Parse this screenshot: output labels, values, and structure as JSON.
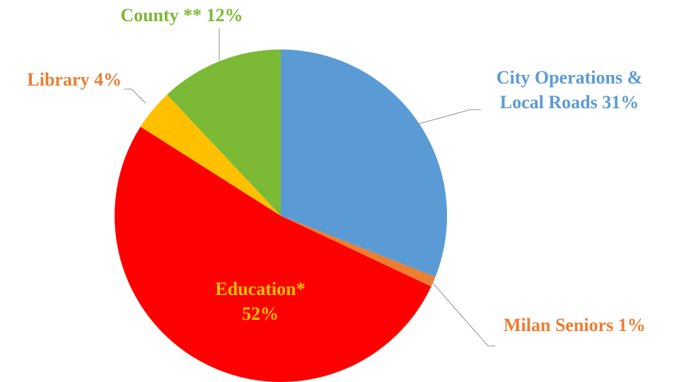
{
  "chart_data": {
    "type": "pie",
    "categories": [
      "City Operations & Local Roads",
      "Milan Seniors",
      "Education*",
      "Library",
      "County **"
    ],
    "values": [
      31,
      1,
      52,
      4,
      12
    ],
    "value_labels": [
      "31%",
      "1%",
      "52%",
      "4%",
      "12%"
    ],
    "colors": [
      "#5b9bd5",
      "#ed7d31",
      "#ff0000",
      "#ffc000",
      "#7cb934"
    ],
    "label_colors": [
      "#5b9bd5",
      "#ed7d31",
      "#ffc000",
      "#ed7d31",
      "#7cb934"
    ]
  }
}
